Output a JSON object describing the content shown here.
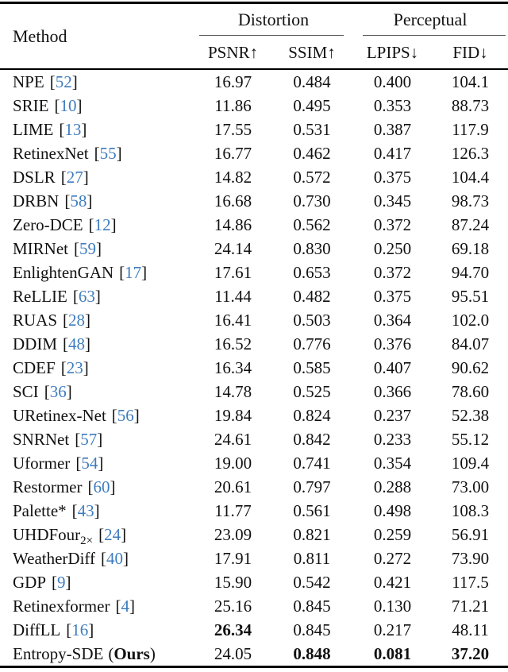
{
  "page": {
    "background": "#ffffff",
    "text_color": "#111111",
    "citation_color": "#3e7cbe"
  },
  "table": {
    "method_header": "Method",
    "groups": [
      {
        "label": "Distortion"
      },
      {
        "label": "Perceptual"
      }
    ],
    "col_headers": [
      "PSNR↑",
      "SSIM↑",
      "LPIPS↓",
      "FID↓"
    ],
    "rows": [
      {
        "method": "NPE",
        "sub": "",
        "cite": "52",
        "suffix_bold": "",
        "psnr": "16.97",
        "ssim": "0.484",
        "lpips": "0.400",
        "fid": "104.1",
        "bold": []
      },
      {
        "method": "SRIE",
        "sub": "",
        "cite": "10",
        "suffix_bold": "",
        "psnr": "11.86",
        "ssim": "0.495",
        "lpips": "0.353",
        "fid": "88.73",
        "bold": []
      },
      {
        "method": "LIME",
        "sub": "",
        "cite": "13",
        "suffix_bold": "",
        "psnr": "17.55",
        "ssim": "0.531",
        "lpips": "0.387",
        "fid": "117.9",
        "bold": []
      },
      {
        "method": "RetinexNet",
        "sub": "",
        "cite": "55",
        "suffix_bold": "",
        "psnr": "16.77",
        "ssim": "0.462",
        "lpips": "0.417",
        "fid": "126.3",
        "bold": []
      },
      {
        "method": "DSLR",
        "sub": "",
        "cite": "27",
        "suffix_bold": "",
        "psnr": "14.82",
        "ssim": "0.572",
        "lpips": "0.375",
        "fid": "104.4",
        "bold": []
      },
      {
        "method": "DRBN",
        "sub": "",
        "cite": "58",
        "suffix_bold": "",
        "psnr": "16.68",
        "ssim": "0.730",
        "lpips": "0.345",
        "fid": "98.73",
        "bold": []
      },
      {
        "method": "Zero-DCE",
        "sub": "",
        "cite": "12",
        "suffix_bold": "",
        "psnr": "14.86",
        "ssim": "0.562",
        "lpips": "0.372",
        "fid": "87.24",
        "bold": []
      },
      {
        "method": "MIRNet",
        "sub": "",
        "cite": "59",
        "suffix_bold": "",
        "psnr": "24.14",
        "ssim": "0.830",
        "lpips": "0.250",
        "fid": "69.18",
        "bold": []
      },
      {
        "method": "EnlightenGAN",
        "sub": "",
        "cite": "17",
        "suffix_bold": "",
        "psnr": "17.61",
        "ssim": "0.653",
        "lpips": "0.372",
        "fid": "94.70",
        "bold": []
      },
      {
        "method": "ReLLIE",
        "sub": "",
        "cite": "63",
        "suffix_bold": "",
        "psnr": "11.44",
        "ssim": "0.482",
        "lpips": "0.375",
        "fid": "95.51",
        "bold": []
      },
      {
        "method": "RUAS",
        "sub": "",
        "cite": "28",
        "suffix_bold": "",
        "psnr": "16.41",
        "ssim": "0.503",
        "lpips": "0.364",
        "fid": "102.0",
        "bold": []
      },
      {
        "method": "DDIM",
        "sub": "",
        "cite": "48",
        "suffix_bold": "",
        "psnr": "16.52",
        "ssim": "0.776",
        "lpips": "0.376",
        "fid": "84.07",
        "bold": []
      },
      {
        "method": "CDEF",
        "sub": "",
        "cite": "23",
        "suffix_bold": "",
        "psnr": "16.34",
        "ssim": "0.585",
        "lpips": "0.407",
        "fid": "90.62",
        "bold": []
      },
      {
        "method": "SCI",
        "sub": "",
        "cite": "36",
        "suffix_bold": "",
        "psnr": "14.78",
        "ssim": "0.525",
        "lpips": "0.366",
        "fid": "78.60",
        "bold": []
      },
      {
        "method": "URetinex-Net",
        "sub": "",
        "cite": "56",
        "suffix_bold": "",
        "psnr": "19.84",
        "ssim": "0.824",
        "lpips": "0.237",
        "fid": "52.38",
        "bold": []
      },
      {
        "method": "SNRNet",
        "sub": "",
        "cite": "57",
        "suffix_bold": "",
        "psnr": "24.61",
        "ssim": "0.842",
        "lpips": "0.233",
        "fid": "55.12",
        "bold": []
      },
      {
        "method": "Uformer",
        "sub": "",
        "cite": "54",
        "suffix_bold": "",
        "psnr": "19.00",
        "ssim": "0.741",
        "lpips": "0.354",
        "fid": "109.4",
        "bold": []
      },
      {
        "method": "Restormer",
        "sub": "",
        "cite": "60",
        "suffix_bold": "",
        "psnr": "20.61",
        "ssim": "0.797",
        "lpips": "0.288",
        "fid": "73.00",
        "bold": []
      },
      {
        "method": "Palette*",
        "sub": "",
        "cite": "43",
        "suffix_bold": "",
        "psnr": "11.77",
        "ssim": "0.561",
        "lpips": "0.498",
        "fid": "108.3",
        "bold": []
      },
      {
        "method": "UHDFour",
        "sub": "2×",
        "cite": "24",
        "suffix_bold": "",
        "psnr": "23.09",
        "ssim": "0.821",
        "lpips": "0.259",
        "fid": "56.91",
        "bold": []
      },
      {
        "method": "WeatherDiff",
        "sub": "",
        "cite": "40",
        "suffix_bold": "",
        "psnr": "17.91",
        "ssim": "0.811",
        "lpips": "0.272",
        "fid": "73.90",
        "bold": []
      },
      {
        "method": "GDP",
        "sub": "",
        "cite": "9",
        "suffix_bold": "",
        "psnr": "15.90",
        "ssim": "0.542",
        "lpips": "0.421",
        "fid": "117.5",
        "bold": []
      },
      {
        "method": "Retinexformer",
        "sub": "",
        "cite": "4",
        "suffix_bold": "",
        "psnr": "25.16",
        "ssim": "0.845",
        "lpips": "0.130",
        "fid": "71.21",
        "bold": []
      },
      {
        "method": "DiffLL",
        "sub": "",
        "cite": "16",
        "suffix_bold": "",
        "psnr": "26.34",
        "ssim": "0.845",
        "lpips": "0.217",
        "fid": "48.11",
        "bold": [
          "psnr"
        ]
      },
      {
        "method": "Entropy-SDE",
        "sub": "",
        "cite": "",
        "suffix_bold": "Ours",
        "psnr": "24.05",
        "ssim": "0.848",
        "lpips": "0.081",
        "fid": "37.20",
        "bold": [
          "ssim",
          "lpips",
          "fid"
        ]
      }
    ]
  }
}
